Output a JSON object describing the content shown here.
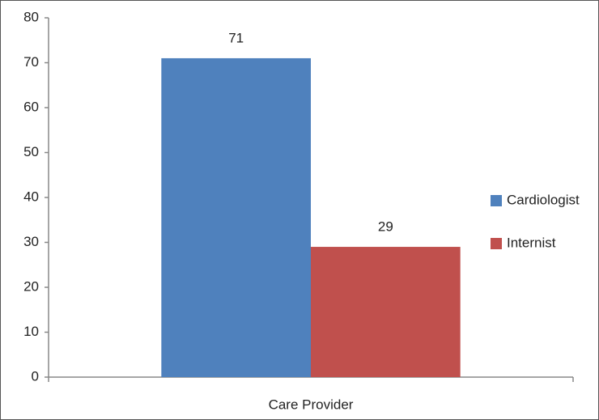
{
  "chart_data": {
    "type": "bar",
    "categories": [
      "Care Provider"
    ],
    "series": [
      {
        "name": "Cardiologist",
        "color": "#4f81bd",
        "values": [
          71
        ]
      },
      {
        "name": "Internist",
        "color": "#c0504d",
        "values": [
          29
        ]
      }
    ],
    "ylim": [
      0,
      80
    ],
    "yticks": [
      0,
      10,
      20,
      30,
      40,
      50,
      60,
      70,
      80
    ],
    "legend": "right",
    "data_labels": true
  }
}
